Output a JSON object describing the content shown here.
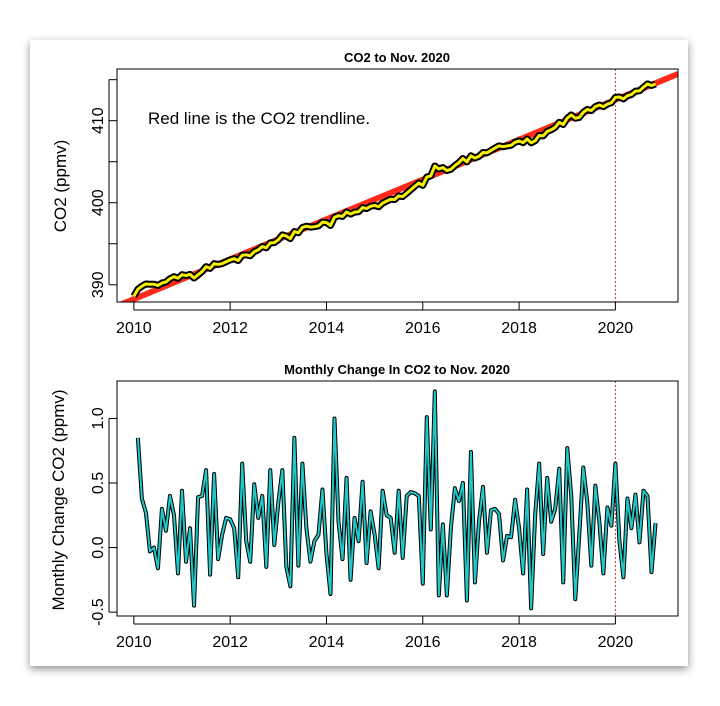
{
  "chart_data": [
    {
      "type": "line",
      "title": "CO2 to Nov. 2020",
      "xlabel": "",
      "ylabel": "CO2 (ppmv)",
      "annotation": "Red line is the CO2 trendline.",
      "xlim": [
        2009.65,
        2021.3
      ],
      "ylim": [
        387.9,
        416.3
      ],
      "xticks": [
        2010,
        2012,
        2014,
        2016,
        2018,
        2020
      ],
      "yticks": [
        390,
        395,
        400,
        405,
        410,
        415
      ],
      "ytick_labels": [
        "390",
        "",
        "400",
        "",
        "410",
        ""
      ],
      "vline": 2020,
      "x_start": "2010-01",
      "x_step": "monthly",
      "series": [
        {
          "values": [
            388.6,
            389.45,
            389.83,
            390.1,
            390.07,
            390.07,
            389.91,
            390.21,
            390.34,
            390.74,
            390.99,
            390.79,
            391.23,
            391.12,
            391.27,
            390.82,
            391.21,
            391.61,
            392.21,
            392.0,
            392.57,
            392.48,
            392.58,
            392.81,
            393.03,
            393.18,
            392.95,
            393.6,
            393.65,
            393.54,
            394.03,
            394.26,
            394.66,
            394.51,
            395.11,
            395.13,
            395.48,
            396.08,
            395.93,
            395.63,
            396.48,
            396.34,
            396.99,
            397.14,
            397.03,
            397.08,
            397.18,
            397.63,
            397.58,
            397.22,
            398.22,
            398.42,
            398.33,
            398.87,
            398.62,
            398.85,
            398.9,
            399.41,
            399.29,
            399.57,
            399.67,
            399.51,
            399.95,
            400.2,
            400.43,
            400.39,
            400.83,
            400.75,
            401.15,
            401.58,
            402.0,
            402.4,
            402.12,
            403.13,
            403.27,
            404.48,
            404.11,
            404.29,
            403.92,
            404.07,
            404.53,
            404.89,
            405.39,
            404.98,
            405.72,
            405.45,
            405.65,
            406.12,
            406.08,
            406.37,
            406.67,
            406.93,
            406.83,
            406.92,
            407.0,
            407.37,
            407.52,
            407.32,
            407.77,
            407.3,
            407.55,
            408.2,
            408.15,
            408.69,
            408.89,
            409.19,
            409.8,
            409.53,
            410.3,
            410.7,
            410.3,
            410.4,
            411.02,
            411.37,
            411.23,
            411.71,
            411.91,
            411.71,
            412.02,
            412.19,
            412.84,
            412.89,
            412.66,
            413.04,
            413.19,
            413.6,
            413.64,
            414.08,
            414.48,
            414.29,
            414.48
          ]
        }
      ],
      "trendline": {
        "x": [
          2009.65,
          2021.3
        ],
        "y": [
          387.4,
          415.7
        ]
      },
      "colors": {
        "line": "#f5f000",
        "outline": "#000000",
        "trend": "#ff2a1a",
        "vline": "#cc3333"
      }
    },
    {
      "type": "line",
      "title": "Monthly Change In CO2 to Nov. 2020",
      "xlabel": "",
      "ylabel": "Monthly Change CO2 (ppmv)",
      "xlim": [
        2009.65,
        2021.3
      ],
      "ylim": [
        -0.53,
        1.29
      ],
      "xticks": [
        2010,
        2012,
        2014,
        2016,
        2018,
        2020
      ],
      "yticks": [
        -0.5,
        0.0,
        0.5,
        1.0
      ],
      "ytick_labels": [
        "-0.5",
        "0.0",
        "0.5",
        "1.0"
      ],
      "vline": 2020,
      "x_start": "2010-02",
      "x_step": "monthly",
      "series": [
        {
          "values": [
            0.85,
            0.38,
            0.27,
            -0.03,
            0.0,
            -0.16,
            0.3,
            0.13,
            0.4,
            0.25,
            -0.2,
            0.44,
            -0.11,
            0.15,
            -0.45,
            0.39,
            0.4,
            0.6,
            -0.21,
            0.57,
            -0.09,
            0.1,
            0.23,
            0.22,
            0.15,
            -0.23,
            0.65,
            0.05,
            -0.11,
            0.49,
            0.23,
            0.4,
            -0.15,
            0.6,
            0.02,
            0.35,
            0.6,
            -0.15,
            -0.3,
            0.85,
            -0.14,
            0.65,
            0.15,
            -0.11,
            0.05,
            0.1,
            0.45,
            -0.05,
            -0.36,
            1.0,
            0.2,
            -0.09,
            0.54,
            -0.25,
            0.23,
            0.05,
            0.51,
            -0.12,
            0.28,
            0.1,
            -0.16,
            0.44,
            0.25,
            0.23,
            -0.04,
            0.44,
            -0.08,
            0.4,
            0.43,
            0.42,
            0.4,
            -0.28,
            1.01,
            0.14,
            1.21,
            -0.37,
            0.18,
            -0.37,
            0.15,
            0.46,
            0.36,
            0.5,
            -0.41,
            0.74,
            -0.27,
            0.2,
            0.47,
            -0.04,
            0.29,
            0.3,
            0.26,
            -0.1,
            0.09,
            0.08,
            0.37,
            0.15,
            -0.2,
            0.45,
            -0.47,
            0.25,
            0.65,
            -0.05,
            0.54,
            0.2,
            0.3,
            0.61,
            -0.27,
            0.77,
            0.4,
            -0.4,
            0.1,
            0.62,
            0.35,
            -0.14,
            0.48,
            0.2,
            -0.2,
            0.31,
            0.17,
            0.65,
            0.05,
            -0.23,
            0.38,
            0.15,
            0.41,
            0.04,
            0.44,
            0.4,
            -0.19,
            0.19
          ]
        }
      ],
      "colors": {
        "line": "#20c8c8",
        "outline": "#000000",
        "vline": "#cc3333"
      }
    }
  ]
}
